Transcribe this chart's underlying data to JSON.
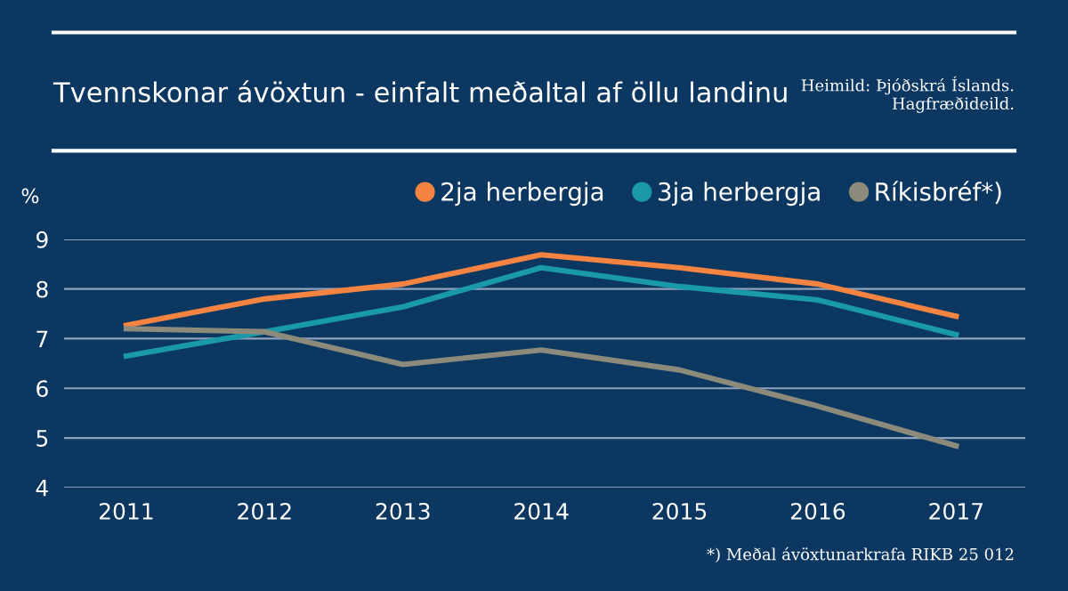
{
  "chart_data": {
    "type": "line",
    "title": "Tvennskonar ávöxtun - einfalt meðaltal af öllu landinu",
    "ylabel": "%",
    "annotations": [
      "Heimild: Þjóðskrá Íslands.\nHagfræðideild.",
      "*) Meðal ávöxtunarkrafa RIKB 25 012"
    ],
    "categories": [
      "2011",
      "2012",
      "2013",
      "2014",
      "2015",
      "2016",
      "2017"
    ],
    "series": [
      {
        "name": "2ja herbergja",
        "color": "#f58442",
        "values": [
          7.27,
          7.8,
          8.1,
          8.69,
          8.43,
          8.1,
          7.45
        ]
      },
      {
        "name": "3ja herbergja",
        "color": "#1a9aa8",
        "values": [
          6.65,
          7.14,
          7.64,
          8.43,
          8.05,
          7.78,
          7.08
        ]
      },
      {
        "name": "Ríkisbréf*)",
        "color": "#8c8a7a",
        "values": [
          7.2,
          7.14,
          6.48,
          6.77,
          6.37,
          5.64,
          4.84
        ]
      }
    ],
    "ylim": [
      4,
      9
    ],
    "yticks": [
      4,
      5,
      6,
      7,
      8,
      9
    ],
    "grid": "y",
    "legend": "top right",
    "marker": "none",
    "line_style": "solid"
  }
}
